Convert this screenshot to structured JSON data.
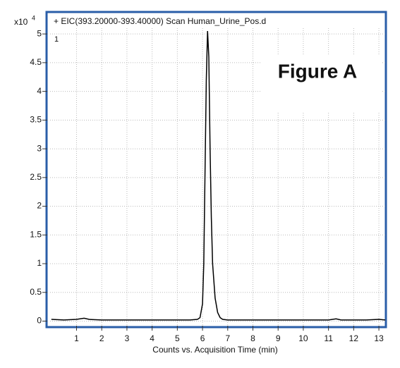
{
  "chart_data": {
    "type": "line",
    "title": "+ EIC(393.20000-393.40000) Scan Human_Urine_Pos.d",
    "annotation": "Figure A",
    "trace_number": "1",
    "y_multiplier": "x10",
    "y_exponent": "4",
    "x_label": "Counts vs. Acquisition Time (min)",
    "x": [
      0,
      0.5,
      1,
      1.3,
      1.5,
      2,
      2.5,
      3,
      3.5,
      4,
      4.5,
      5,
      5.5,
      5.8,
      5.9,
      6.0,
      6.05,
      6.1,
      6.15,
      6.2,
      6.25,
      6.3,
      6.35,
      6.4,
      6.5,
      6.6,
      6.7,
      6.8,
      7,
      7.5,
      8,
      9,
      10,
      11,
      11.3,
      11.5,
      12,
      12.5,
      13,
      13.25
    ],
    "series": [
      {
        "name": "EIC",
        "color": "#000000",
        "values": [
          0.03,
          0.02,
          0.03,
          0.05,
          0.03,
          0.02,
          0.02,
          0.02,
          0.02,
          0.02,
          0.02,
          0.02,
          0.02,
          0.03,
          0.06,
          0.3,
          1.0,
          2.6,
          4.2,
          5.05,
          4.6,
          3.0,
          1.8,
          1.0,
          0.4,
          0.15,
          0.06,
          0.03,
          0.02,
          0.02,
          0.02,
          0.02,
          0.02,
          0.02,
          0.04,
          0.02,
          0.02,
          0.02,
          0.03,
          0.02
        ]
      }
    ],
    "xlim": [
      -0.05,
      13.25
    ],
    "ylim": [
      -0.08,
      5.1
    ],
    "xticks": [
      1,
      2,
      3,
      4,
      5,
      6,
      7,
      8,
      9,
      10,
      11,
      12,
      13
    ],
    "yticks": [
      0,
      0.5,
      1,
      1.5,
      2,
      2.5,
      3,
      3.5,
      4,
      4.5,
      5
    ],
    "grid": true
  }
}
